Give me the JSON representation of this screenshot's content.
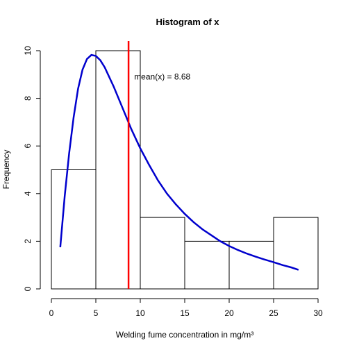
{
  "chart_data": {
    "type": "bar",
    "title": "Histogram of x",
    "xlabel": "Welding fume concentration in mg/m³",
    "ylabel": "Frequency",
    "xlim": [
      0,
      30
    ],
    "ylim": [
      0,
      10
    ],
    "x_ticks": [
      0,
      5,
      10,
      15,
      20,
      25,
      30
    ],
    "y_ticks": [
      0,
      2,
      4,
      6,
      8,
      10
    ],
    "bins": [
      {
        "from": 0,
        "to": 5,
        "count": 5
      },
      {
        "from": 5,
        "to": 10,
        "count": 10
      },
      {
        "from": 10,
        "to": 15,
        "count": 3
      },
      {
        "from": 15,
        "to": 20,
        "count": 2
      },
      {
        "from": 20,
        "to": 25,
        "count": 2
      },
      {
        "from": 25,
        "to": 30,
        "count": 3
      }
    ],
    "mean_line": {
      "x": 8.68,
      "color": "#ff0000"
    },
    "annotation": {
      "text": "mean(x) =  8.68",
      "x": 9.0,
      "y": 8.9
    },
    "density_curve": {
      "color": "#0000cd",
      "points": [
        [
          1.0,
          1.75
        ],
        [
          1.5,
          3.9
        ],
        [
          2.0,
          5.7
        ],
        [
          2.5,
          7.2
        ],
        [
          3.0,
          8.4
        ],
        [
          3.5,
          9.2
        ],
        [
          4.0,
          9.65
        ],
        [
          4.5,
          9.82
        ],
        [
          5.0,
          9.78
        ],
        [
          5.5,
          9.6
        ],
        [
          6.0,
          9.3
        ],
        [
          7.0,
          8.5
        ],
        [
          8.0,
          7.6
        ],
        [
          9.0,
          6.7
        ],
        [
          10.0,
          5.9
        ],
        [
          11.0,
          5.2
        ],
        [
          12.0,
          4.55
        ],
        [
          13.0,
          4.0
        ],
        [
          14.0,
          3.55
        ],
        [
          15.0,
          3.15
        ],
        [
          16.0,
          2.8
        ],
        [
          17.0,
          2.5
        ],
        [
          18.0,
          2.25
        ],
        [
          19.0,
          2.0
        ],
        [
          20.0,
          1.8
        ],
        [
          21.0,
          1.63
        ],
        [
          22.0,
          1.48
        ],
        [
          23.0,
          1.35
        ],
        [
          24.0,
          1.23
        ],
        [
          25.0,
          1.12
        ],
        [
          26.0,
          1.0
        ],
        [
          27.0,
          0.9
        ],
        [
          27.8,
          0.8
        ]
      ]
    }
  }
}
